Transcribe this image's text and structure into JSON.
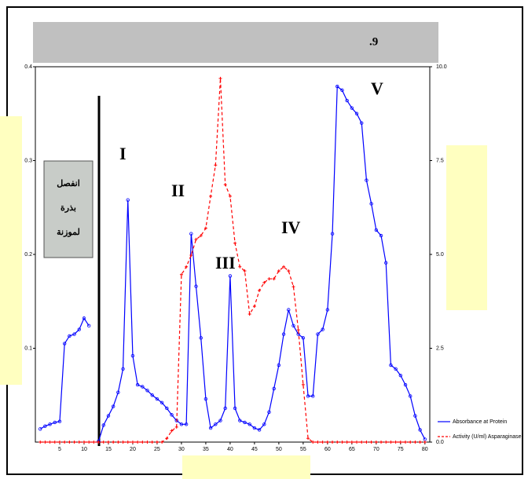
{
  "chart_data": {
    "type": "line",
    "title": ".9",
    "annotations": [
      "I",
      "II",
      "III",
      "IV",
      "V"
    ],
    "inset_text": [
      "انفصل",
      "بذرة",
      "لموزنة"
    ],
    "x": [
      1,
      2,
      3,
      4,
      5,
      6,
      7,
      8,
      9,
      10,
      11,
      12,
      13,
      14,
      15,
      16,
      17,
      18,
      19,
      20,
      21,
      22,
      23,
      24,
      25,
      26,
      27,
      28,
      29,
      30,
      31,
      32,
      33,
      34,
      35,
      36,
      37,
      38,
      39,
      40,
      41,
      42,
      43,
      44,
      45,
      46,
      47,
      48,
      49,
      50,
      51,
      52,
      53,
      54,
      55,
      56,
      57,
      58,
      59,
      60,
      61,
      62,
      63,
      64,
      65,
      66,
      67,
      68,
      69,
      70,
      71,
      72,
      73,
      74,
      75,
      76,
      77,
      78,
      79,
      80
    ],
    "series": [
      {
        "name": "Absorbance at Protein",
        "color": "#0000ff",
        "values": [
          0.014,
          0.017,
          0.019,
          0.021,
          0.022,
          0.105,
          0.113,
          0.115,
          0.12,
          0.132,
          0.124,
          null,
          0.001,
          0.018,
          0.028,
          0.038,
          0.053,
          0.078,
          0.258,
          0.092,
          0.061,
          0.059,
          0.055,
          0.05,
          0.046,
          0.042,
          0.036,
          0.029,
          0.023,
          0.019,
          0.019,
          0.222,
          0.166,
          0.111,
          0.046,
          0.015,
          0.019,
          0.023,
          0.036,
          0.177,
          0.036,
          0.023,
          0.021,
          0.019,
          0.015,
          0.013,
          0.019,
          0.032,
          0.057,
          0.082,
          0.115,
          0.141,
          0.124,
          0.115,
          0.111,
          0.049,
          0.049,
          0.115,
          0.12,
          0.141,
          0.222,
          0.379,
          0.375,
          0.364,
          0.356,
          0.35,
          0.34,
          0.279,
          0.254,
          0.226,
          0.22,
          0.191,
          0.082,
          0.078,
          0.071,
          0.061,
          0.049,
          0.028,
          0.013,
          0.003
        ]
      },
      {
        "name": "Activity (U/ml) Asparaginase",
        "color": "#ff0000",
        "axis": "y2",
        "values": [
          0,
          0,
          0,
          0,
          0,
          0,
          0,
          0,
          0,
          0,
          0,
          0,
          0,
          0,
          0,
          0,
          0,
          0,
          0,
          0,
          0,
          0,
          0,
          0,
          0,
          0,
          0.1,
          0.3,
          0.4,
          4.46,
          4.67,
          4.98,
          5.4,
          5.5,
          5.7,
          6.55,
          7.38,
          9.69,
          6.86,
          6.55,
          5.3,
          4.67,
          4.56,
          3.41,
          3.62,
          4.04,
          4.25,
          4.35,
          4.35,
          4.56,
          4.67,
          4.56,
          4.14,
          2.99,
          1.53,
          0.1,
          0,
          0,
          0,
          0,
          0,
          0,
          0,
          0,
          0,
          0,
          0,
          0,
          0,
          0,
          0,
          0,
          0,
          0,
          0,
          0,
          0,
          0,
          0,
          0
        ]
      }
    ],
    "xlim": [
      0,
      81
    ],
    "xticks": [
      5,
      10,
      15,
      20,
      25,
      30,
      35,
      40,
      45,
      50,
      55,
      60,
      65,
      70,
      75,
      80
    ],
    "ylim": [
      0,
      0.4
    ],
    "yticks": [
      0.1,
      0.2,
      0.3,
      0.4
    ],
    "y2lim": [
      0,
      10
    ],
    "y2ticks": [
      {
        "value": 0,
        "label": "0.0"
      },
      {
        "value": 2.5,
        "label": "2.5"
      },
      {
        "value": 5,
        "label": "5.0"
      },
      {
        "value": 7.5,
        "label": "7.5"
      },
      {
        "value": 10,
        "label": "10.0"
      }
    ]
  }
}
